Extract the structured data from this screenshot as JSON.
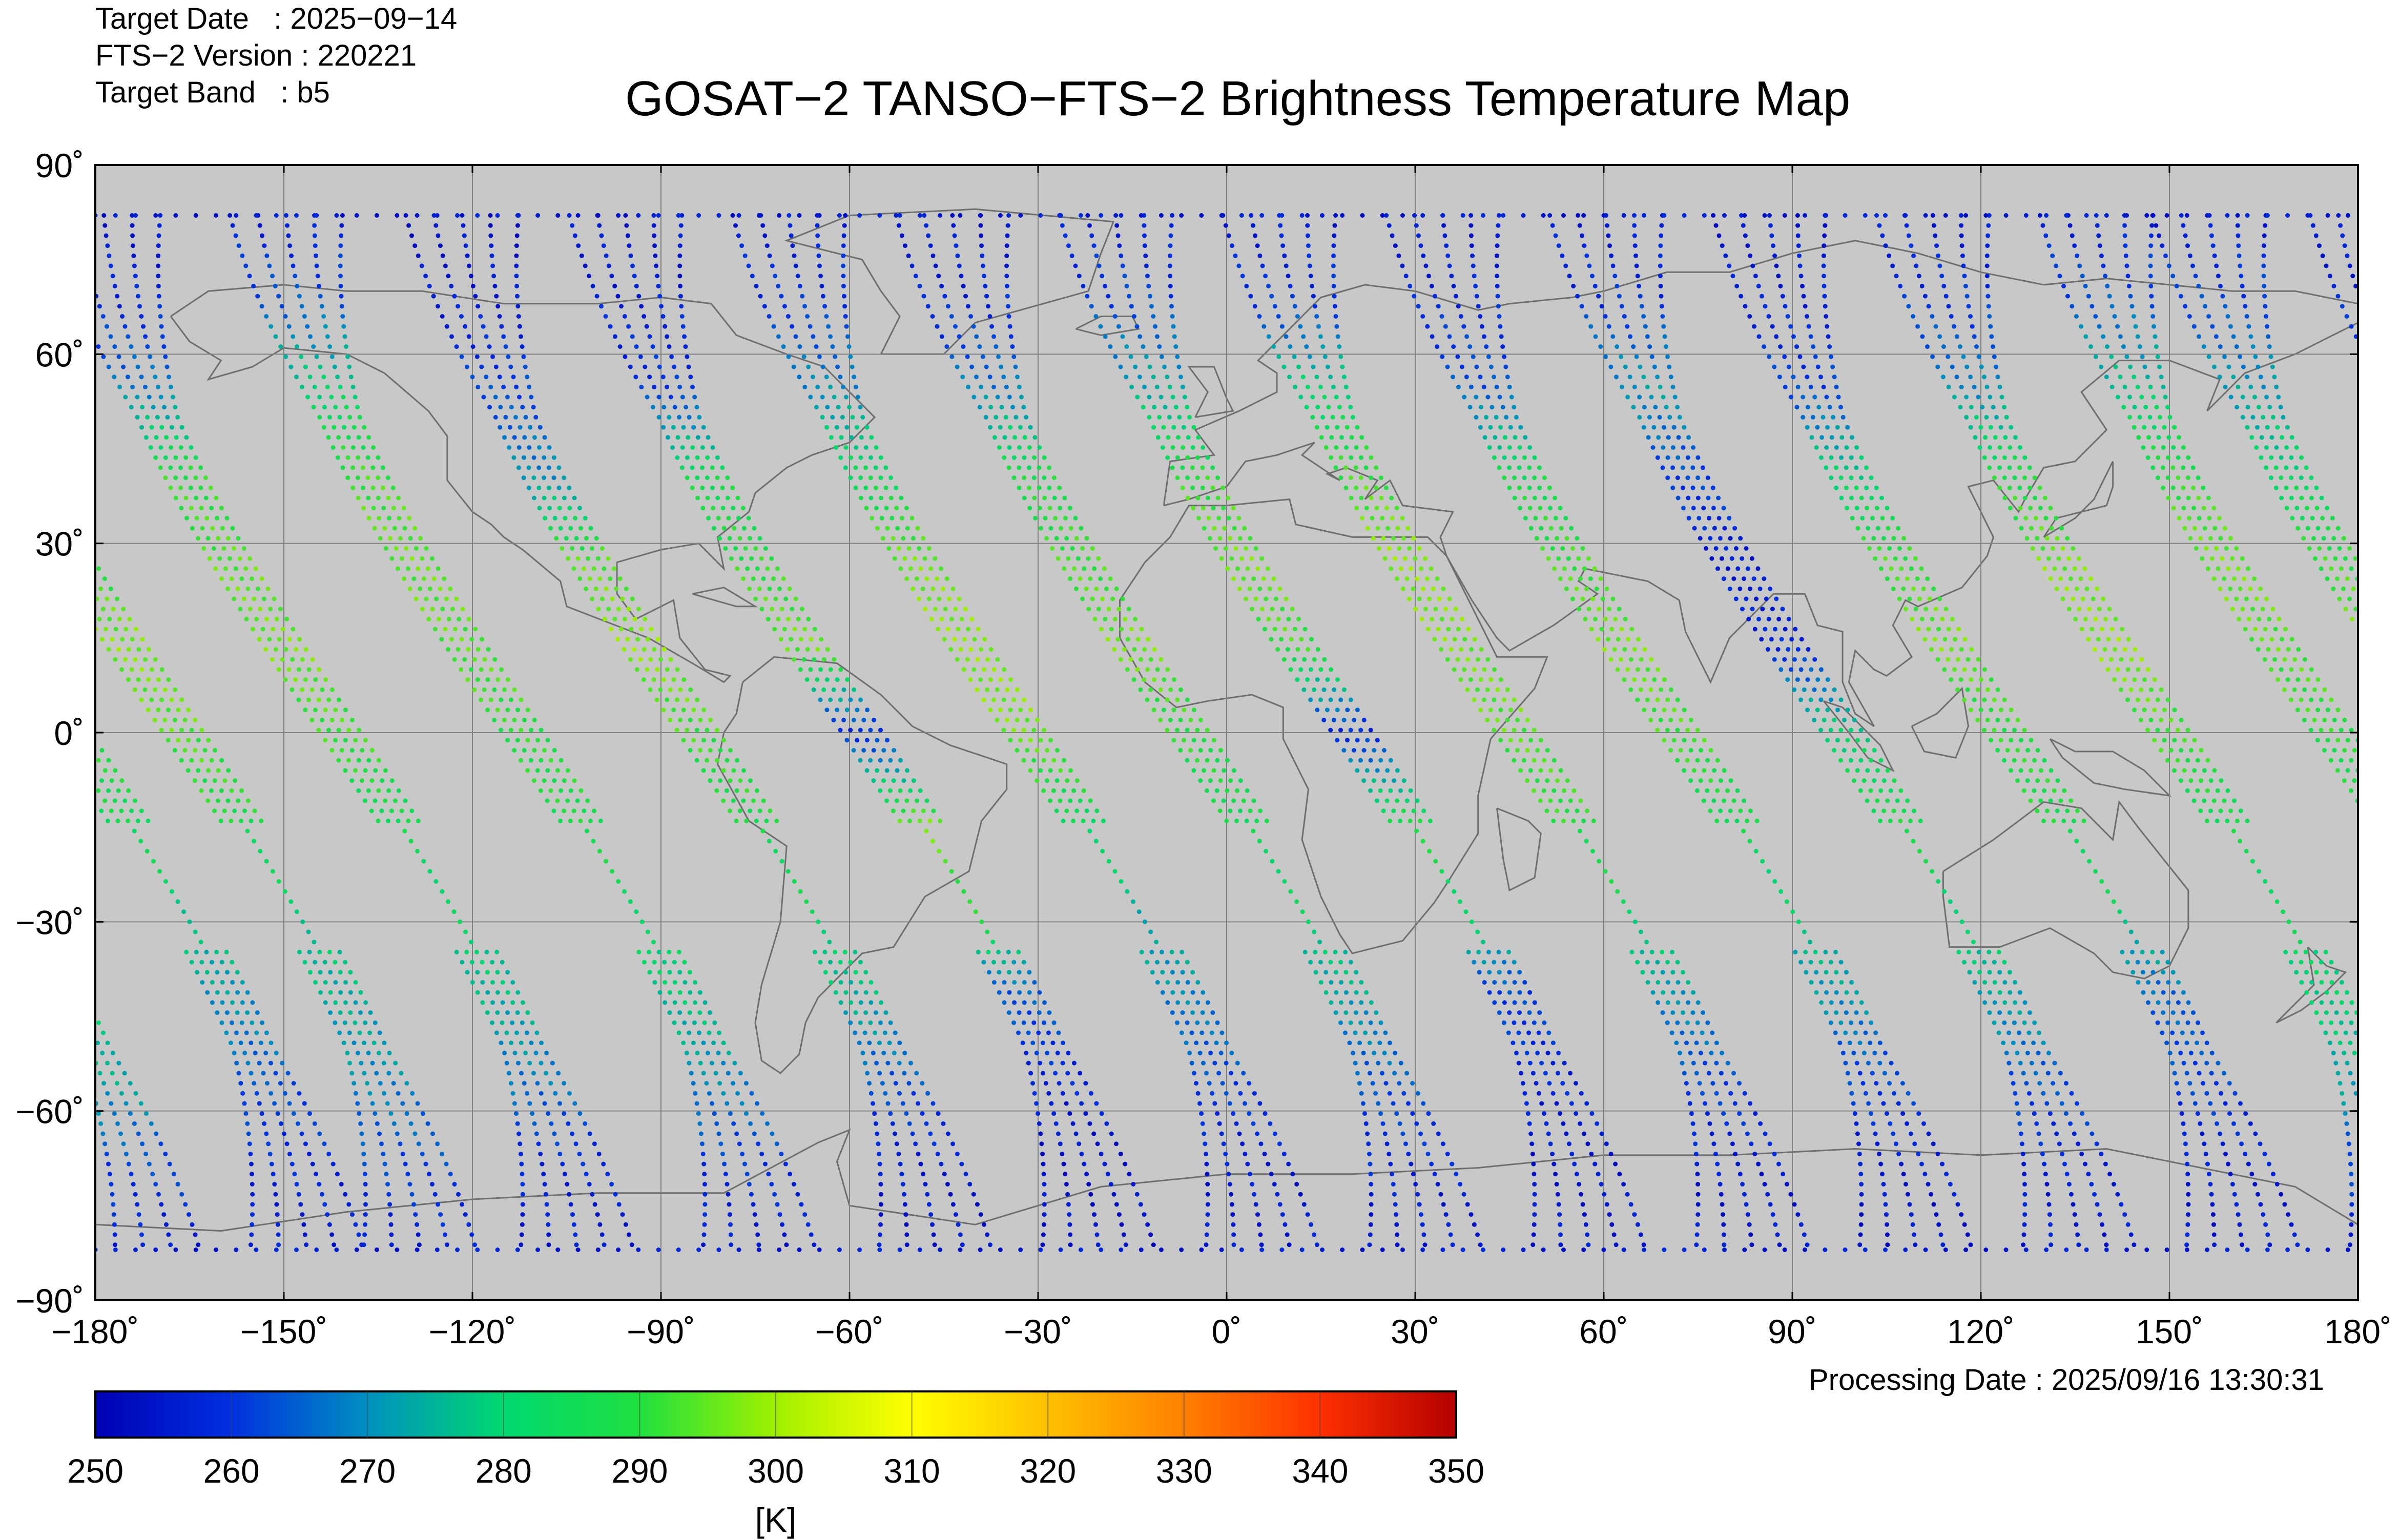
{
  "header": {
    "target_date": "Target Date   : 2025−09−14",
    "fts_version": "FTS−2 Version : 220221",
    "target_band": "Target Band   : b5",
    "title": "GOSAT−2 TANSO−FTS−2 Brightness Temperature Map"
  },
  "footer": {
    "processing_date": "Processing Date : 2025/09/16 13:30:31"
  },
  "chart_data": {
    "type": "scatter",
    "projection": "equirectangular",
    "xlim": [
      -180,
      180
    ],
    "ylim": [
      -90,
      90
    ],
    "x_ticks": [
      -180,
      -150,
      -120,
      -90,
      -60,
      -30,
      0,
      30,
      60,
      90,
      120,
      150,
      180
    ],
    "y_ticks": [
      -90,
      -60,
      -30,
      0,
      30,
      60,
      90
    ],
    "x_tick_labels": [
      "−180˚",
      "−150˚",
      "−120˚",
      "−90˚",
      "−60˚",
      "−30˚",
      "0˚",
      "30˚",
      "60˚",
      "90˚",
      "120˚",
      "150˚",
      "180˚"
    ],
    "y_tick_labels": [
      "−90˚",
      "−60˚",
      "−30˚",
      "0˚",
      "30˚",
      "60˚",
      "90˚"
    ],
    "grid": true,
    "background_color": "#c8c8c8",
    "colorbar": {
      "min": 250,
      "max": 350,
      "ticks": [
        250,
        260,
        270,
        280,
        290,
        300,
        310,
        320,
        330,
        340,
        350
      ],
      "tick_labels": [
        "250",
        "260",
        "270",
        "280",
        "290",
        "300",
        "310",
        "320",
        "330",
        "340",
        "350"
      ],
      "unit": "[K]",
      "stops": [
        "#0000b4",
        "#0030e0",
        "#0090c0",
        "#00d870",
        "#20e040",
        "#a0f000",
        "#ffff00",
        "#ffc000",
        "#ff8000",
        "#ff3000",
        "#b40000"
      ]
    },
    "tracks": [
      {
        "lon0": -166,
        "temps": [
          256,
          262,
          272,
          282,
          291,
          297,
          294,
          288,
          280,
          275,
          270,
          262,
          256
        ]
      },
      {
        "lon0": -141,
        "temps": [
          255,
          258,
          268,
          290,
          294,
          296,
          292,
          286,
          282,
          276,
          268,
          258,
          255
        ]
      },
      {
        "lon0": -112,
        "temps": [
          256,
          264,
          280,
          292,
          295,
          294,
          290,
          288,
          284,
          278,
          270,
          260,
          255
        ]
      },
      {
        "lon0": -84,
        "temps": [
          254,
          256,
          262,
          270,
          294,
          298,
          292,
          288,
          284,
          276,
          264,
          256,
          254
        ]
      },
      {
        "lon0": -58,
        "temps": [
          255,
          257,
          260,
          286,
          290,
          296,
          258,
          295,
          292,
          265,
          258,
          254,
          254
        ]
      },
      {
        "lon0": -32,
        "temps": [
          256,
          260,
          270,
          284,
          296,
          298,
          296,
          284,
          276,
          270,
          262,
          256,
          255
        ]
      },
      {
        "lon0": -6,
        "temps": [
          255,
          258,
          268,
          288,
          292,
          296,
          290,
          286,
          282,
          274,
          264,
          258,
          255
        ]
      },
      {
        "lon0": 20,
        "temps": [
          256,
          262,
          274,
          290,
          296,
          292,
          258,
          288,
          284,
          262,
          258,
          255,
          255
        ]
      },
      {
        "lon0": 46,
        "temps": [
          256,
          260,
          280,
          292,
          298,
          296,
          294,
          290,
          284,
          272,
          262,
          256,
          255
        ]
      },
      {
        "lon0": 72,
        "temps": [
          255,
          258,
          264,
          286,
          292,
          296,
          292,
          286,
          280,
          272,
          262,
          256,
          254
        ]
      },
      {
        "lon0": 98,
        "temps": [
          256,
          260,
          272,
          262,
          256,
          258,
          280,
          288,
          282,
          274,
          264,
          257,
          255
        ]
      },
      {
        "lon0": 124,
        "temps": [
          255,
          257,
          262,
          280,
          292,
          296,
          290,
          288,
          282,
          266,
          262,
          256,
          255
        ]
      },
      {
        "lon0": 150,
        "temps": [
          256,
          260,
          270,
          288,
          296,
          298,
          292,
          286,
          284,
          280,
          274,
          262,
          256
        ]
      },
      {
        "lon0": 176,
        "temps": [
          256,
          264,
          278,
          290,
          296,
          294,
          290,
          286,
          280,
          272,
          264,
          258,
          256
        ]
      }
    ]
  }
}
